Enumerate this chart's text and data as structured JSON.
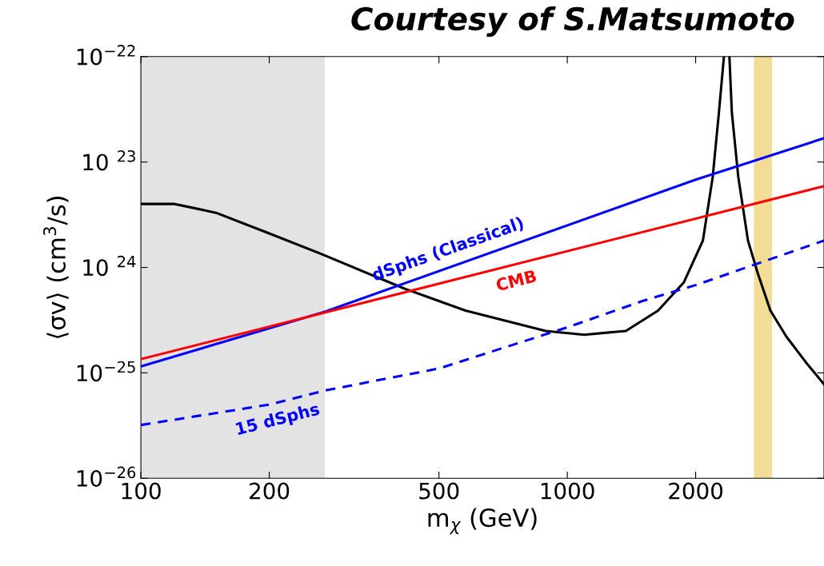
{
  "chart_data": {
    "type": "line",
    "xlabel": "m$_{χ}$ (GeV)",
    "ylabel": "⟨σv⟩ (cm$^{3}$/s)",
    "log": "xy",
    "grid": false,
    "legend": false,
    "annotations": [
      "Courtesy of S.Matsumoto"
    ],
    "xlim": [
      100,
      4000
    ],
    "xticks": [
      100,
      200,
      500,
      1000,
      2000
    ],
    "ylim": [
      1e-26,
      1e-22
    ],
    "yticks": [
      {
        "value": 1e-26,
        "label": "10$^{−26}$"
      },
      {
        "value": 1e-25,
        "label": "10$^{−25}$"
      },
      {
        "value": 1e-24,
        "label": "10 $^{24}$"
      },
      {
        "value": 1e-23,
        "label": "10 $^{23}$"
      },
      {
        "value": 1e-22,
        "label": "10$^{−22}$"
      }
    ],
    "bands": [
      {
        "axis": "x",
        "from": 100,
        "to": 270,
        "color": "#e3e3e3"
      },
      {
        "axis": "x",
        "from": 2740,
        "to": 3020,
        "color": "#f2dc96"
      }
    ],
    "series": [
      {
        "color": "#000000",
        "line_style": "solid",
        "x": [
          100,
          120,
          150,
          200,
          264,
          415,
          577,
          890,
          1096,
          1372,
          1633,
          1876,
          2080,
          2193,
          2268,
          2330,
          2365,
          2400,
          2432,
          2518,
          2653,
          2795,
          2995,
          3266,
          3627,
          4000
        ],
        "values": [
          4e-24,
          4e-24,
          3.3e-24,
          2.1e-24,
          1.35e-24,
          6.3e-25,
          3.9e-25,
          2.5e-25,
          2.3e-25,
          2.5e-25,
          3.9e-25,
          7.2e-25,
          1.8e-24,
          7.2e-24,
          2.95e-23,
          1e-22,
          null,
          1e-22,
          2.95e-23,
          7.2e-24,
          1.8e-24,
          8.9e-25,
          3.9e-25,
          2.2e-25,
          1.26e-25,
          7.8e-26
        ]
      },
      {
        "name": "dSphs (Classical)",
        "color": "#0000ff",
        "line_style": "solid",
        "x": [
          100,
          270,
          2000,
          4000
        ],
        "values": [
          1.15e-25,
          3.8e-25,
          6.8e-24,
          1.68e-23
        ]
      },
      {
        "name": "CMB",
        "color": "#ff0000",
        "line_style": "solid",
        "x": [
          100,
          4000
        ],
        "values": [
          1.35e-25,
          5.9e-24
        ]
      },
      {
        "name": "15 dSphs",
        "color": "#0000ff",
        "line_style": "dashed",
        "x": [
          100,
          200,
          270,
          500,
          1000,
          1500,
          2000,
          4000
        ],
        "values": [
          3.2e-26,
          5e-26,
          6.8e-26,
          1.1e-25,
          2.7e-25,
          4.8e-25,
          6.8e-25,
          1.8e-24
        ]
      }
    ]
  }
}
